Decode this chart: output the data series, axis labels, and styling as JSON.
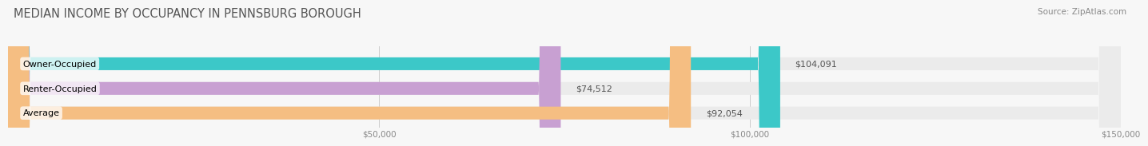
{
  "title": "MEDIAN INCOME BY OCCUPANCY IN PENNSBURG BOROUGH",
  "source": "Source: ZipAtlas.com",
  "categories": [
    "Owner-Occupied",
    "Renter-Occupied",
    "Average"
  ],
  "values": [
    104091,
    74512,
    92054
  ],
  "labels": [
    "$104,091",
    "$74,512",
    "$92,054"
  ],
  "bar_colors": [
    "#3cc8c8",
    "#c8a0d2",
    "#f5be82"
  ],
  "bar_bg_color": "#ebebeb",
  "xlim": [
    0,
    150000
  ],
  "xticks": [
    50000,
    100000,
    150000
  ],
  "xtick_labels": [
    "$50,000",
    "$100,000",
    "$150,000"
  ],
  "title_fontsize": 10.5,
  "source_fontsize": 7.5,
  "label_fontsize": 8,
  "category_fontsize": 8,
  "tick_fontsize": 7.5,
  "bar_height": 0.52,
  "background_color": "#f7f7f7"
}
